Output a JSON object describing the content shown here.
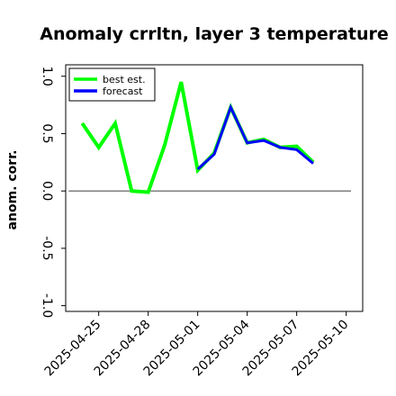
{
  "chart_data": {
    "type": "line",
    "title": "Anomaly crrltn, layer 3 temperature",
    "xlabel": "",
    "ylabel": "anom. corr.",
    "ylim": [
      -1.05,
      1.1
    ],
    "yticks": [
      -1.0,
      -0.5,
      0.0,
      0.5,
      1.0
    ],
    "ytick_labels": [
      "-1.0",
      "-0.5",
      "0.0",
      "0.5",
      "1.0"
    ],
    "xrange": [
      "2025-04-23",
      "2025-05-11"
    ],
    "xticks": [
      "2025-04-25",
      "2025-04-28",
      "2025-05-01",
      "2025-05-04",
      "2025-05-07",
      "2025-05-10"
    ],
    "xtick_labels": [
      "2025-04-25",
      "2025-04-28",
      "2025-05-01",
      "2025-05-04",
      "2025-05-07",
      "2025-05-10"
    ],
    "highlight_tick": "2025-05-01",
    "highlight_color": "#228b22",
    "zero_line": 0.0,
    "legend_position": "top-left",
    "series": [
      {
        "name": "best est.",
        "color": "#00ff00",
        "points": [
          [
            "2025-04-24",
            0.59
          ],
          [
            "2025-04-25",
            0.38
          ],
          [
            "2025-04-26",
            0.59
          ],
          [
            "2025-04-27",
            0.0
          ],
          [
            "2025-04-28",
            -0.01
          ],
          [
            "2025-04-29",
            0.4
          ],
          [
            "2025-04-30",
            0.95
          ],
          [
            "2025-05-01",
            0.18
          ],
          [
            "2025-05-02",
            0.33
          ],
          [
            "2025-05-03",
            0.73
          ],
          [
            "2025-05-04",
            0.42
          ],
          [
            "2025-05-05",
            0.45
          ],
          [
            "2025-05-06",
            0.38
          ],
          [
            "2025-05-07",
            0.39
          ],
          [
            "2025-05-08",
            0.25
          ]
        ]
      },
      {
        "name": "forecast",
        "color": "#0000ff",
        "points": [
          [
            "2025-05-01",
            0.19
          ],
          [
            "2025-05-02",
            0.32
          ],
          [
            "2025-05-03",
            0.73
          ],
          [
            "2025-05-04",
            0.42
          ],
          [
            "2025-05-05",
            0.44
          ],
          [
            "2025-05-06",
            0.38
          ],
          [
            "2025-05-07",
            0.36
          ],
          [
            "2025-05-08",
            0.24
          ]
        ]
      }
    ]
  }
}
